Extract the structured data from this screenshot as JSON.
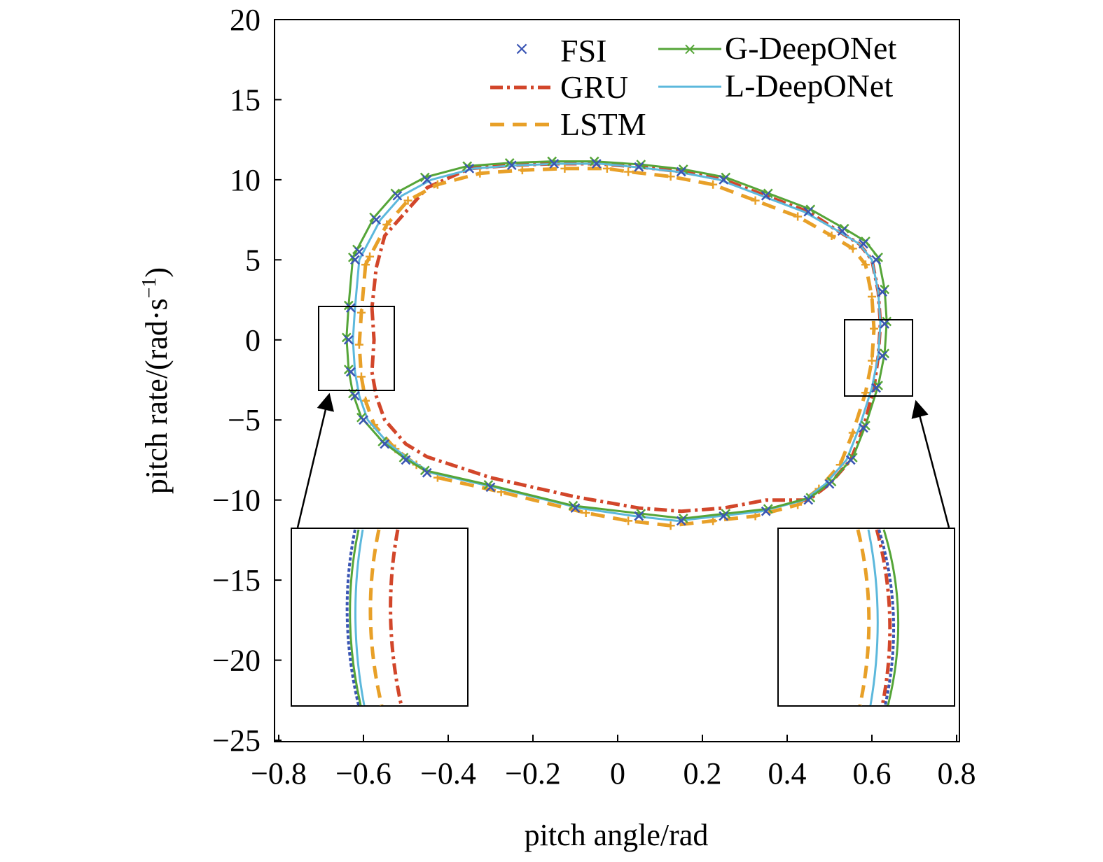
{
  "colors": {
    "FSI": "#3a55b4",
    "GRU": "#d2462a",
    "LSTM": "#e8a028",
    "G-DeepONet": "#55a538",
    "L-DeepONet": "#5cb8dc"
  },
  "chart_data": {
    "type": "line",
    "title": "",
    "xlabel": "pitch angle/rad",
    "ylabel_main": "pitch rate/(rad·s",
    "ylabel_sup": "−1",
    "ylabel_tail": ")",
    "xlim": [
      -0.8,
      0.8
    ],
    "ylim": [
      -25,
      20
    ],
    "xticks": [
      -0.8,
      -0.6,
      -0.4,
      -0.2,
      0,
      0.2,
      0.4,
      0.6,
      0.8
    ],
    "xtick_labels": [
      "−0.8",
      "−0.6",
      "−0.4",
      "−0.2",
      "0",
      "0.2",
      "0.4",
      "0.6",
      "0.8"
    ],
    "yticks": [
      20,
      15,
      10,
      5,
      0,
      -5,
      -10,
      -15,
      -20,
      -25
    ],
    "ytick_labels": [
      "20",
      "15",
      "10",
      "5",
      "0",
      "−5",
      "−10",
      "−15",
      "−20",
      "−25"
    ],
    "grid": false,
    "legend_position": "top-right",
    "series": [
      {
        "name": "FSI",
        "style": "markers-x",
        "x": [
          -0.62,
          -0.63,
          -0.635,
          -0.63,
          -0.62,
          -0.6,
          -0.55,
          -0.5,
          -0.45,
          -0.3,
          -0.1,
          0.05,
          0.15,
          0.25,
          0.35,
          0.45,
          0.5,
          0.55,
          0.58,
          0.61,
          0.625,
          0.63,
          0.625,
          0.61,
          0.58,
          0.53,
          0.45,
          0.35,
          0.25,
          0.15,
          0.05,
          -0.05,
          -0.15,
          -0.25,
          -0.35,
          -0.45,
          -0.52,
          -0.57,
          -0.61
        ],
        "y": [
          5,
          2,
          0,
          -2,
          -3.5,
          -5,
          -6.5,
          -7.5,
          -8.3,
          -9.2,
          -10.5,
          -11,
          -11.3,
          -11,
          -10.7,
          -10,
          -9,
          -7.5,
          -5.5,
          -3,
          -1,
          1,
          3,
          5,
          6,
          6.8,
          8,
          9,
          10,
          10.5,
          10.8,
          11,
          11,
          10.9,
          10.7,
          10,
          9,
          7.5,
          5.5
        ]
      },
      {
        "name": "GRU",
        "style": "dash-dot",
        "x": [
          -0.58,
          -0.575,
          -0.58,
          -0.57,
          -0.55,
          -0.5,
          -0.45,
          -0.3,
          -0.1,
          0.05,
          0.15,
          0.25,
          0.35,
          0.45,
          0.5,
          0.55,
          0.58,
          0.605,
          0.615,
          0.62,
          0.615,
          0.6,
          0.57,
          0.52,
          0.45,
          0.35,
          0.25,
          0.15,
          0.05,
          -0.05,
          -0.15,
          -0.25,
          -0.35,
          -0.45,
          -0.5,
          -0.55,
          -0.57,
          -0.58
        ],
        "y": [
          2,
          0,
          -2,
          -3.5,
          -5,
          -6.5,
          -7.3,
          -8.6,
          -9.8,
          -10.5,
          -10.7,
          -10.5,
          -10,
          -10,
          -9,
          -7.5,
          -5.5,
          -3,
          -1,
          1,
          3,
          5,
          6,
          6.8,
          8,
          9,
          10,
          10.5,
          10.8,
          11,
          11,
          10.9,
          10.7,
          9.5,
          8,
          6.5,
          4.5,
          2
        ]
      }
    ]
  }
}
